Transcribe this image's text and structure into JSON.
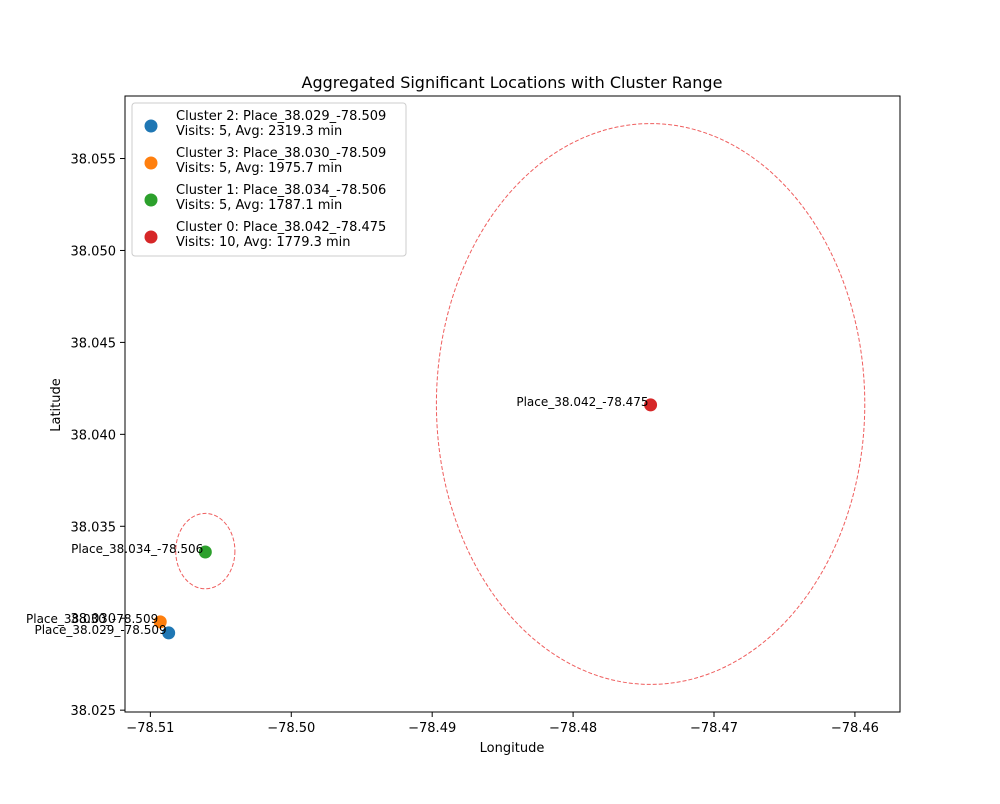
{
  "chart_data": {
    "type": "scatter",
    "title": "Aggregated Significant Locations with Cluster Range",
    "xlabel": "Longitude",
    "ylabel": "Latitude",
    "xlim": [
      -78.5118,
      -78.4568
    ],
    "ylim": [
      38.0249,
      38.0584
    ],
    "xticks": [
      -78.51,
      -78.5,
      -78.49,
      -78.48,
      -78.47,
      -78.46
    ],
    "xtick_labels": [
      "−78.51",
      "−78.50",
      "−78.49",
      "−78.48",
      "−78.47",
      "−78.46"
    ],
    "yticks": [
      38.025,
      38.03,
      38.035,
      38.04,
      38.045,
      38.05,
      38.055
    ],
    "ytick_labels": [
      "38.025",
      "38.030",
      "38.035",
      "38.040",
      "38.045",
      "38.050",
      "38.055"
    ],
    "grid": false,
    "legend_position": "upper-left",
    "range_color": "#ee5555",
    "series": [
      {
        "legend_line1": "Cluster 2: Place_38.029_-78.509",
        "legend_line2": "Visits: 5, Avg: 2319.3 min",
        "label": "Place_38.029_-78.509",
        "x": -78.5087,
        "y": 38.0292,
        "color": "#1f77b4",
        "range_x": [],
        "range_y": []
      },
      {
        "legend_line1": "Cluster 3: Place_38.030_-78.509",
        "legend_line2": "Visits: 5, Avg: 1975.7 min",
        "label": "Place_38.030_-78.509",
        "x": -78.5093,
        "y": 38.0298,
        "color": "#ff7f0e",
        "range_x": [],
        "range_y": []
      },
      {
        "legend_line1": "Cluster 1: Place_38.034_-78.506",
        "legend_line2": "Visits: 5, Avg: 1787.1 min",
        "label": "Place_38.034_-78.506",
        "x": -78.5061,
        "y": 38.0336,
        "color": "#2ca02c",
        "range_x": [
          -78.5082,
          -78.504
        ],
        "range_y": [
          38.0316,
          38.0357
        ]
      },
      {
        "legend_line1": "Cluster 0: Place_38.042_-78.475",
        "legend_line2": "Visits: 10, Avg: 1779.3 min",
        "label": "Place_38.042_-78.475",
        "x": -78.4745,
        "y": 38.0416,
        "color": "#d62728",
        "range_x": [
          -78.4897,
          -78.4593
        ],
        "range_y": [
          38.0264,
          38.0569
        ]
      }
    ]
  }
}
